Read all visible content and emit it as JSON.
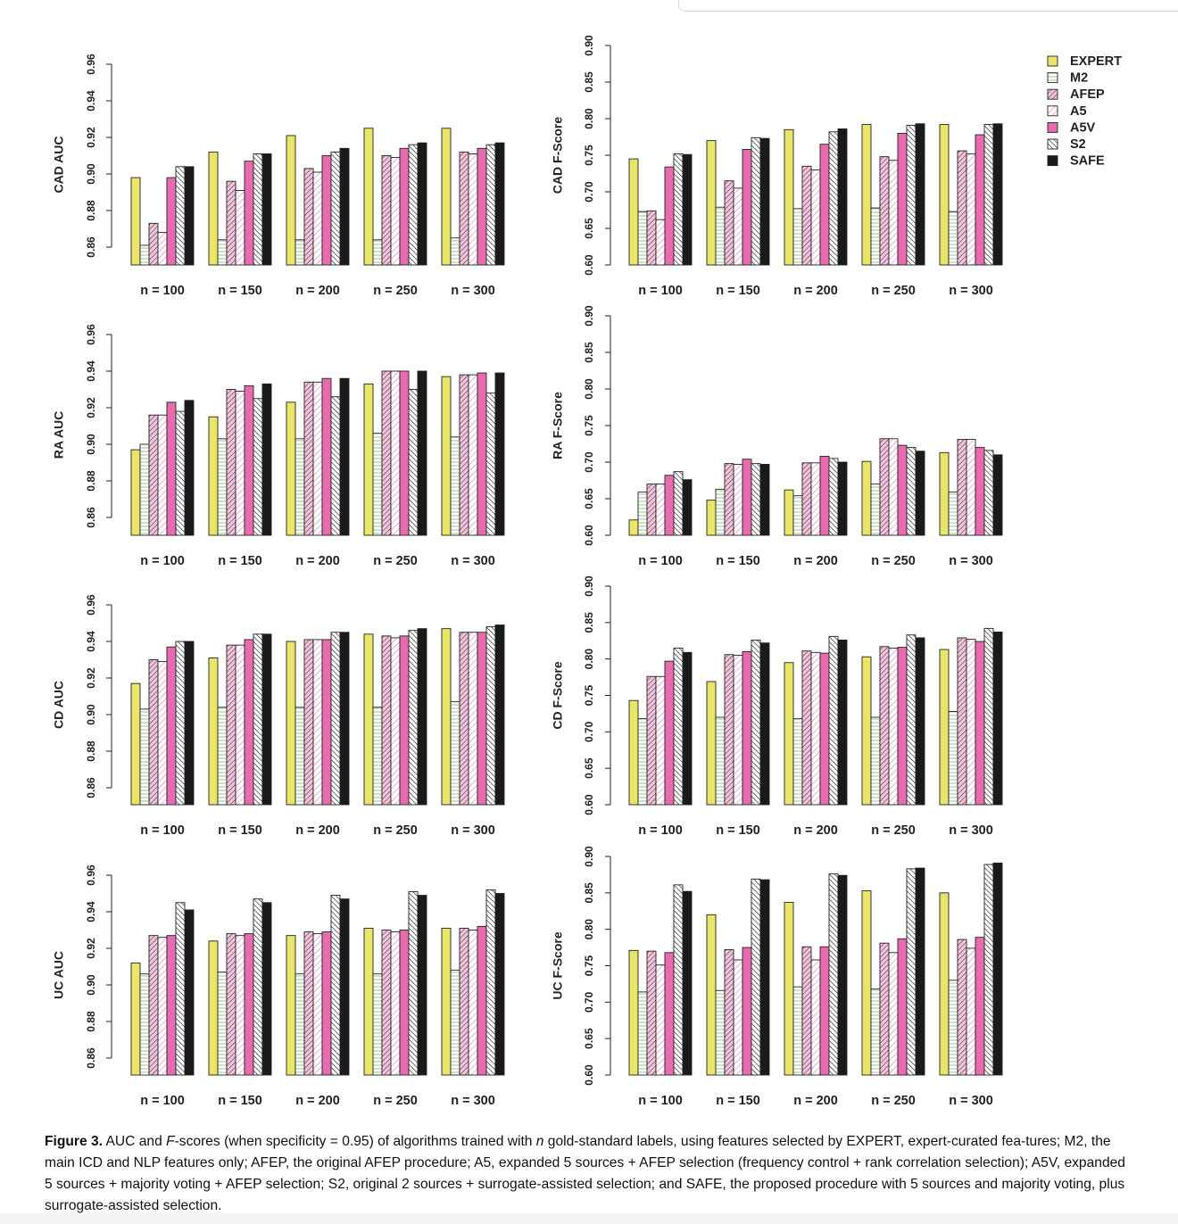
{
  "legend": [
    {
      "name": "EXPERT",
      "key": "expert"
    },
    {
      "name": "M2",
      "key": "m2"
    },
    {
      "name": "AFEP",
      "key": "afep"
    },
    {
      "name": "A5",
      "key": "a5"
    },
    {
      "name": "A5V",
      "key": "a5v"
    },
    {
      "name": "S2",
      "key": "s2"
    },
    {
      "name": "SAFE",
      "key": "safe"
    }
  ],
  "colors": {
    "expert": "#e8e568",
    "pink": "#e86bb0",
    "black": "#1a1a1a",
    "m2_lines": "#8cc07a"
  },
  "caption": {
    "label": "Figure 3.",
    "text_1": " AUC and ",
    "italic_f": "F",
    "text_2": "-scores (when specificity = 0.95) of algorithms trained with ",
    "italic_n": "n",
    "text_3": " gold-standard labels, using features selected by EXPERT, expert-curated fea-tures; M2, the main ICD and NLP features only; AFEP, the original AFEP procedure; A5, expanded 5 sources + AFEP selection (frequency control + rank correlation selection); A5V, expanded 5 sources + majority voting + AFEP selection; S2, original 2 sources + surrogate-assisted selection; and SAFE, the proposed procedure with 5 sources and majority voting, plus surrogate-assisted selection."
  },
  "chart_data": [
    {
      "type": "bar",
      "ylabel": "CAD AUC",
      "ylim": [
        0.85,
        0.97
      ],
      "yticks": [
        "0.86",
        "0.88",
        "0.90",
        "0.92",
        "0.94",
        "0.96"
      ],
      "categories": [
        "n = 100",
        "n = 150",
        "n = 200",
        "n = 250",
        "n = 300"
      ],
      "series": [
        {
          "name": "EXPERT",
          "values": [
            0.898,
            0.912,
            0.921,
            0.925,
            0.925
          ]
        },
        {
          "name": "M2",
          "values": [
            0.861,
            0.864,
            0.864,
            0.864,
            0.865
          ]
        },
        {
          "name": "AFEP",
          "values": [
            0.873,
            0.896,
            0.903,
            0.91,
            0.912
          ]
        },
        {
          "name": "A5",
          "values": [
            0.868,
            0.891,
            0.901,
            0.909,
            0.911
          ]
        },
        {
          "name": "A5V",
          "values": [
            0.898,
            0.907,
            0.91,
            0.914,
            0.914
          ]
        },
        {
          "name": "S2",
          "values": [
            0.904,
            0.911,
            0.912,
            0.916,
            0.916
          ]
        },
        {
          "name": "SAFE",
          "values": [
            0.904,
            0.911,
            0.914,
            0.917,
            0.917
          ]
        }
      ]
    },
    {
      "type": "bar",
      "ylabel": "CAD F-Score",
      "ylim": [
        0.6,
        0.9
      ],
      "yticks": [
        "0.60",
        "0.65",
        "0.70",
        "0.75",
        "0.80",
        "0.85",
        "0.90"
      ],
      "categories": [
        "n = 100",
        "n = 150",
        "n = 200",
        "n = 250",
        "n = 300"
      ],
      "series": [
        {
          "name": "EXPERT",
          "values": [
            0.745,
            0.77,
            0.785,
            0.792,
            0.792
          ]
        },
        {
          "name": "M2",
          "values": [
            0.673,
            0.679,
            0.677,
            0.678,
            0.673
          ]
        },
        {
          "name": "AFEP",
          "values": [
            0.674,
            0.715,
            0.735,
            0.748,
            0.756
          ]
        },
        {
          "name": "A5",
          "values": [
            0.662,
            0.705,
            0.73,
            0.743,
            0.752
          ]
        },
        {
          "name": "A5V",
          "values": [
            0.734,
            0.758,
            0.765,
            0.78,
            0.778
          ]
        },
        {
          "name": "S2",
          "values": [
            0.752,
            0.774,
            0.782,
            0.791,
            0.792
          ]
        },
        {
          "name": "SAFE",
          "values": [
            0.751,
            0.773,
            0.786,
            0.793,
            0.793
          ]
        }
      ]
    },
    {
      "type": "bar",
      "ylabel": "RA AUC",
      "ylim": [
        0.85,
        0.97
      ],
      "yticks": [
        "0.86",
        "0.88",
        "0.90",
        "0.92",
        "0.94",
        "0.96"
      ],
      "categories": [
        "n = 100",
        "n = 150",
        "n = 200",
        "n = 250",
        "n = 300"
      ],
      "series": [
        {
          "name": "EXPERT",
          "values": [
            0.897,
            0.915,
            0.923,
            0.933,
            0.937
          ]
        },
        {
          "name": "M2",
          "values": [
            0.9,
            0.903,
            0.903,
            0.906,
            0.904
          ]
        },
        {
          "name": "AFEP",
          "values": [
            0.916,
            0.93,
            0.934,
            0.94,
            0.938
          ]
        },
        {
          "name": "A5",
          "values": [
            0.916,
            0.929,
            0.934,
            0.94,
            0.938
          ]
        },
        {
          "name": "A5V",
          "values": [
            0.923,
            0.932,
            0.936,
            0.94,
            0.939
          ]
        },
        {
          "name": "S2",
          "values": [
            0.918,
            0.925,
            0.926,
            0.93,
            0.928
          ]
        },
        {
          "name": "SAFE",
          "values": [
            0.924,
            0.933,
            0.936,
            0.94,
            0.939
          ]
        }
      ]
    },
    {
      "type": "bar",
      "ylabel": "RA F-Score",
      "ylim": [
        0.6,
        0.9
      ],
      "yticks": [
        "0.60",
        "0.65",
        "0.70",
        "0.75",
        "0.80",
        "0.85",
        "0.90"
      ],
      "categories": [
        "n = 100",
        "n = 150",
        "n = 200",
        "n = 250",
        "n = 300"
      ],
      "series": [
        {
          "name": "EXPERT",
          "values": [
            0.621,
            0.648,
            0.662,
            0.701,
            0.713
          ]
        },
        {
          "name": "M2",
          "values": [
            0.659,
            0.663,
            0.654,
            0.67,
            0.659
          ]
        },
        {
          "name": "AFEP",
          "values": [
            0.67,
            0.698,
            0.699,
            0.732,
            0.731
          ]
        },
        {
          "name": "A5",
          "values": [
            0.67,
            0.697,
            0.699,
            0.732,
            0.731
          ]
        },
        {
          "name": "A5V",
          "values": [
            0.682,
            0.704,
            0.708,
            0.723,
            0.72
          ]
        },
        {
          "name": "S2",
          "values": [
            0.687,
            0.698,
            0.705,
            0.72,
            0.716
          ]
        },
        {
          "name": "SAFE",
          "values": [
            0.676,
            0.697,
            0.7,
            0.715,
            0.71
          ]
        }
      ]
    },
    {
      "type": "bar",
      "ylabel": "CD AUC",
      "ylim": [
        0.85,
        0.97
      ],
      "yticks": [
        "0.86",
        "0.88",
        "0.90",
        "0.92",
        "0.94",
        "0.96"
      ],
      "categories": [
        "n = 100",
        "n = 150",
        "n = 200",
        "n = 250",
        "n = 300"
      ],
      "series": [
        {
          "name": "EXPERT",
          "values": [
            0.917,
            0.931,
            0.94,
            0.944,
            0.947
          ]
        },
        {
          "name": "M2",
          "values": [
            0.903,
            0.904,
            0.904,
            0.904,
            0.907
          ]
        },
        {
          "name": "AFEP",
          "values": [
            0.93,
            0.938,
            0.941,
            0.943,
            0.945
          ]
        },
        {
          "name": "A5",
          "values": [
            0.929,
            0.938,
            0.941,
            0.942,
            0.945
          ]
        },
        {
          "name": "A5V",
          "values": [
            0.937,
            0.941,
            0.941,
            0.943,
            0.945
          ]
        },
        {
          "name": "S2",
          "values": [
            0.94,
            0.944,
            0.945,
            0.946,
            0.948
          ]
        },
        {
          "name": "SAFE",
          "values": [
            0.94,
            0.944,
            0.945,
            0.947,
            0.949
          ]
        }
      ]
    },
    {
      "type": "bar",
      "ylabel": "CD F-Score",
      "ylim": [
        0.6,
        0.9
      ],
      "yticks": [
        "0.60",
        "0.65",
        "0.70",
        "0.75",
        "0.80",
        "0.85",
        "0.90"
      ],
      "categories": [
        "n = 100",
        "n = 150",
        "n = 200",
        "n = 250",
        "n = 300"
      ],
      "series": [
        {
          "name": "EXPERT",
          "values": [
            0.743,
            0.769,
            0.795,
            0.803,
            0.813
          ]
        },
        {
          "name": "M2",
          "values": [
            0.718,
            0.72,
            0.718,
            0.72,
            0.728
          ]
        },
        {
          "name": "AFEP",
          "values": [
            0.776,
            0.806,
            0.811,
            0.817,
            0.829
          ]
        },
        {
          "name": "A5",
          "values": [
            0.776,
            0.805,
            0.809,
            0.815,
            0.827
          ]
        },
        {
          "name": "A5V",
          "values": [
            0.797,
            0.81,
            0.808,
            0.816,
            0.824
          ]
        },
        {
          "name": "S2",
          "values": [
            0.815,
            0.826,
            0.831,
            0.833,
            0.842
          ]
        },
        {
          "name": "SAFE",
          "values": [
            0.809,
            0.822,
            0.826,
            0.829,
            0.837
          ]
        }
      ]
    },
    {
      "type": "bar",
      "ylabel": "UC AUC",
      "ylim": [
        0.85,
        0.97
      ],
      "yticks": [
        "0.86",
        "0.88",
        "0.90",
        "0.92",
        "0.94",
        "0.96"
      ],
      "categories": [
        "n = 100",
        "n = 150",
        "n = 200",
        "n = 250",
        "n = 300"
      ],
      "series": [
        {
          "name": "EXPERT",
          "values": [
            0.912,
            0.924,
            0.927,
            0.931,
            0.931
          ]
        },
        {
          "name": "M2",
          "values": [
            0.906,
            0.907,
            0.906,
            0.906,
            0.908
          ]
        },
        {
          "name": "AFEP",
          "values": [
            0.927,
            0.928,
            0.929,
            0.93,
            0.931
          ]
        },
        {
          "name": "A5",
          "values": [
            0.926,
            0.927,
            0.928,
            0.929,
            0.93
          ]
        },
        {
          "name": "A5V",
          "values": [
            0.927,
            0.928,
            0.929,
            0.93,
            0.932
          ]
        },
        {
          "name": "S2",
          "values": [
            0.945,
            0.947,
            0.949,
            0.951,
            0.952
          ]
        },
        {
          "name": "SAFE",
          "values": [
            0.941,
            0.945,
            0.947,
            0.949,
            0.95
          ]
        }
      ]
    },
    {
      "type": "bar",
      "ylabel": "UC F-Score",
      "ylim": [
        0.6,
        0.9
      ],
      "yticks": [
        "0.60",
        "0.65",
        "0.70",
        "0.75",
        "0.80",
        "0.85",
        "0.90"
      ],
      "categories": [
        "n = 100",
        "n = 150",
        "n = 200",
        "n = 250",
        "n = 300"
      ],
      "series": [
        {
          "name": "EXPERT",
          "values": [
            0.771,
            0.82,
            0.837,
            0.853,
            0.85
          ]
        },
        {
          "name": "M2",
          "values": [
            0.714,
            0.716,
            0.721,
            0.718,
            0.73
          ]
        },
        {
          "name": "AFEP",
          "values": [
            0.77,
            0.772,
            0.776,
            0.781,
            0.786
          ]
        },
        {
          "name": "A5",
          "values": [
            0.751,
            0.758,
            0.758,
            0.768,
            0.774
          ]
        },
        {
          "name": "A5V",
          "values": [
            0.768,
            0.775,
            0.776,
            0.787,
            0.789
          ]
        },
        {
          "name": "S2",
          "values": [
            0.861,
            0.869,
            0.876,
            0.883,
            0.889
          ]
        },
        {
          "name": "SAFE",
          "values": [
            0.852,
            0.868,
            0.874,
            0.884,
            0.891
          ]
        }
      ]
    }
  ]
}
